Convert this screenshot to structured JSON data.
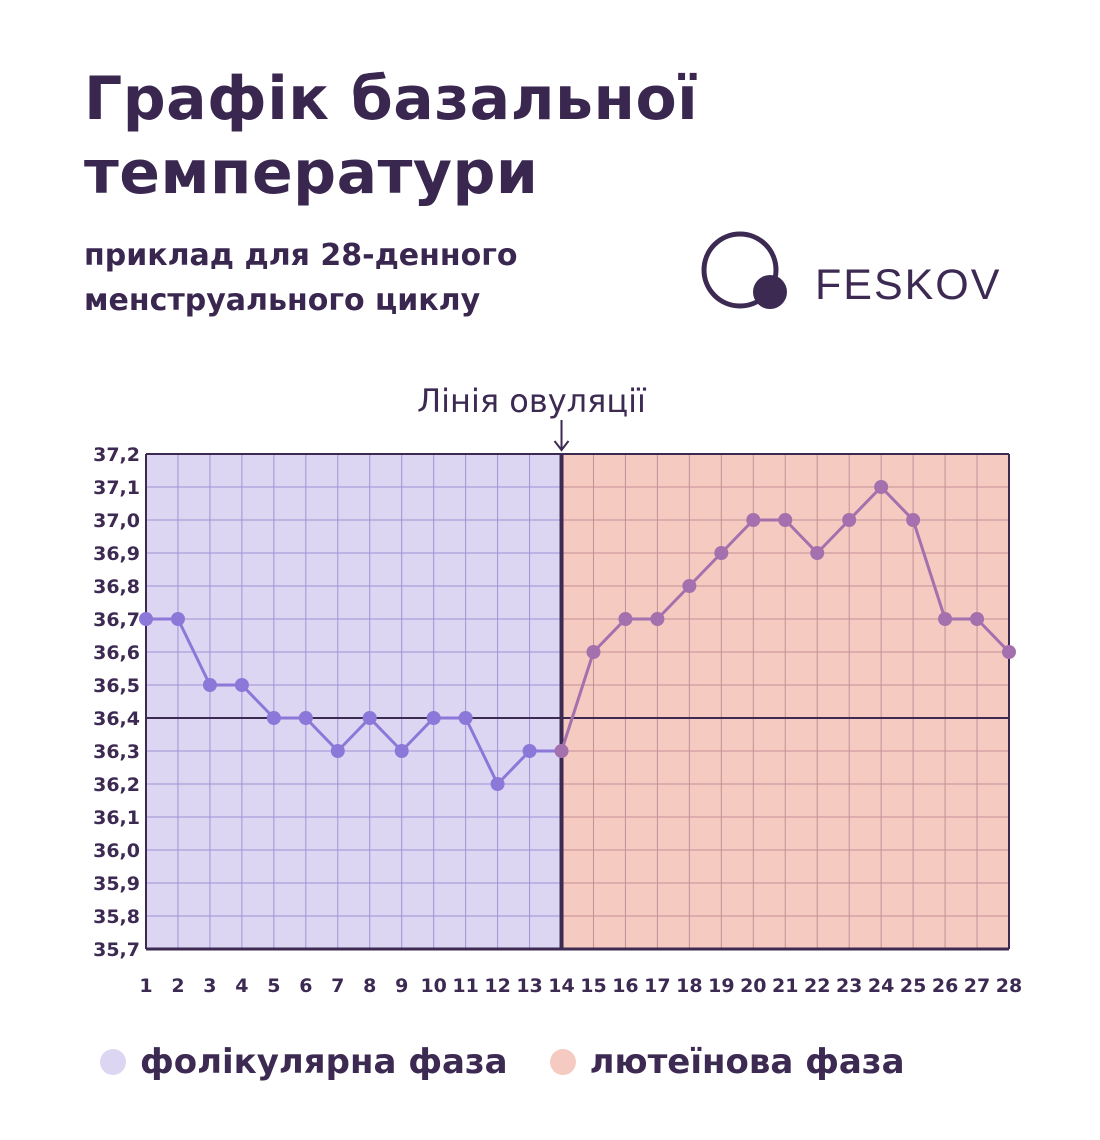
{
  "header": {
    "title_line1": "Графік базальної",
    "title_line2": "температури",
    "subtitle_line1": "приклад для 28-денного",
    "subtitle_line2": "менструального циклу"
  },
  "brand": {
    "name": "FESKOV",
    "logo_icon": "circle-with-dot-logo"
  },
  "colors": {
    "text": "#3d2a52",
    "follicular_bg": "#dcd6f2",
    "luteal_bg": "#f5cac0",
    "follicular_line": "#8b78d8",
    "luteal_line": "#a470ad",
    "follicular_grid": "#9f93d4",
    "luteal_grid": "#c58f98",
    "axis": "#3d2a52"
  },
  "chart_data": {
    "type": "line",
    "ovulation_label": "Лінія овуляції",
    "ovulation_day": 14,
    "baseline_value": 36.4,
    "x": [
      1,
      2,
      3,
      4,
      5,
      6,
      7,
      8,
      9,
      10,
      11,
      12,
      13,
      14,
      15,
      16,
      17,
      18,
      19,
      20,
      21,
      22,
      23,
      24,
      25,
      26,
      27,
      28
    ],
    "y": [
      36.7,
      36.7,
      36.5,
      36.5,
      36.4,
      36.4,
      36.3,
      36.4,
      36.3,
      36.4,
      36.4,
      36.2,
      36.3,
      36.3,
      36.6,
      36.7,
      36.7,
      36.8,
      36.9,
      37.0,
      37.0,
      36.9,
      37.0,
      37.1,
      37.0,
      36.7,
      36.7,
      36.6
    ],
    "ylim": [
      35.7,
      37.2
    ],
    "xlim": [
      1,
      28
    ],
    "ytick_labels": [
      "37,2",
      "37,1",
      "37,0",
      "36,9",
      "36,8",
      "36,7",
      "36,6",
      "36,5",
      "36,4",
      "36,3",
      "36,2",
      "36,1",
      "36,0",
      "35,9",
      "35,8",
      "35,7"
    ],
    "xtick_labels": [
      "1",
      "2",
      "3",
      "4",
      "5",
      "6",
      "7",
      "8",
      "9",
      "10",
      "11",
      "12",
      "13",
      "14",
      "15",
      "16",
      "17",
      "18",
      "19",
      "20",
      "21",
      "22",
      "23",
      "24",
      "25",
      "26",
      "27",
      "28"
    ],
    "grid": true,
    "legend_position": "bottom",
    "phases": [
      {
        "name": "фолікулярна фаза",
        "from_day": 1,
        "to_day": 14
      },
      {
        "name": "лютеїнова фаза",
        "from_day": 14,
        "to_day": 28
      }
    ]
  },
  "legend": {
    "items": [
      {
        "label": "фолікулярна фаза",
        "color": "#dcd6f2"
      },
      {
        "label": "лютеїнова фаза",
        "color": "#f5cac0"
      }
    ]
  }
}
